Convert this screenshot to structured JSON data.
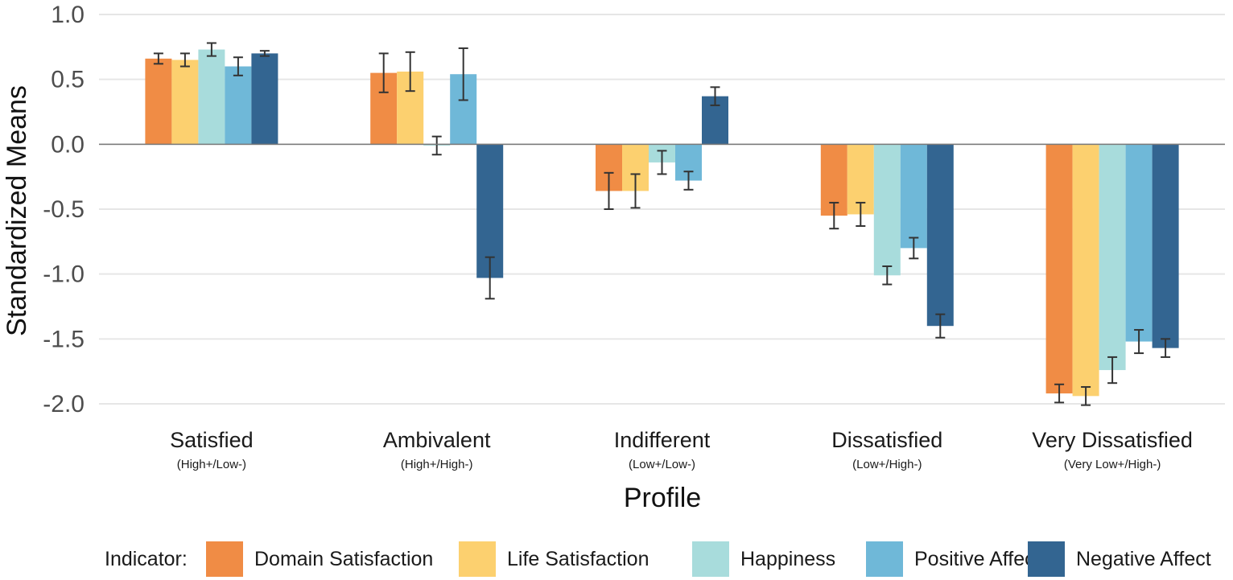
{
  "chart_data": {
    "type": "bar",
    "xlabel": "Profile",
    "ylabel": "Standardized Means",
    "ylim": [
      -2.0,
      1.0
    ],
    "yticks": [
      1.0,
      0.5,
      0.0,
      -0.5,
      -1.0,
      -1.5,
      -2.0
    ],
    "ytick_labels": [
      "1.0",
      "0.5",
      "0.0",
      "-0.5",
      "-1.0",
      "-1.5",
      "-2.0"
    ],
    "grid": true,
    "legend_title": "Indicator:",
    "legend_position": "bottom",
    "categories": [
      "Satisfied",
      "Ambivalent",
      "Indifferent",
      "Dissatisfied",
      "Very Dissatisfied"
    ],
    "category_subtitles": [
      "(High+/Low-)",
      "(High+/High-)",
      "(Low+/Low-)",
      "(Low+/High-)",
      "(Very Low+/High-)"
    ],
    "series": [
      {
        "name": "Domain Satisfaction",
        "color": "#F08C45",
        "values": [
          0.66,
          0.55,
          -0.36,
          -0.55,
          -1.92
        ],
        "errors": [
          0.04,
          0.15,
          0.14,
          0.1,
          0.07
        ]
      },
      {
        "name": "Life Satisfaction",
        "color": "#FCD06F",
        "values": [
          0.65,
          0.56,
          -0.36,
          -0.54,
          -1.94
        ],
        "errors": [
          0.05,
          0.15,
          0.13,
          0.09,
          0.07
        ]
      },
      {
        "name": "Happiness",
        "color": "#A8DCDC",
        "values": [
          0.73,
          -0.01,
          -0.14,
          -1.01,
          -1.74
        ],
        "errors": [
          0.05,
          0.07,
          0.09,
          0.07,
          0.1
        ]
      },
      {
        "name": "Positive Affect",
        "color": "#6FB8D8",
        "values": [
          0.6,
          0.54,
          -0.28,
          -0.8,
          -1.52
        ],
        "errors": [
          0.07,
          0.2,
          0.07,
          0.08,
          0.09
        ]
      },
      {
        "name": "Negative Affect",
        "color": "#336591",
        "values": [
          0.7,
          -1.03,
          0.37,
          -1.4,
          -1.57
        ],
        "errors": [
          0.02,
          0.16,
          0.07,
          0.09,
          0.07
        ]
      }
    ]
  }
}
